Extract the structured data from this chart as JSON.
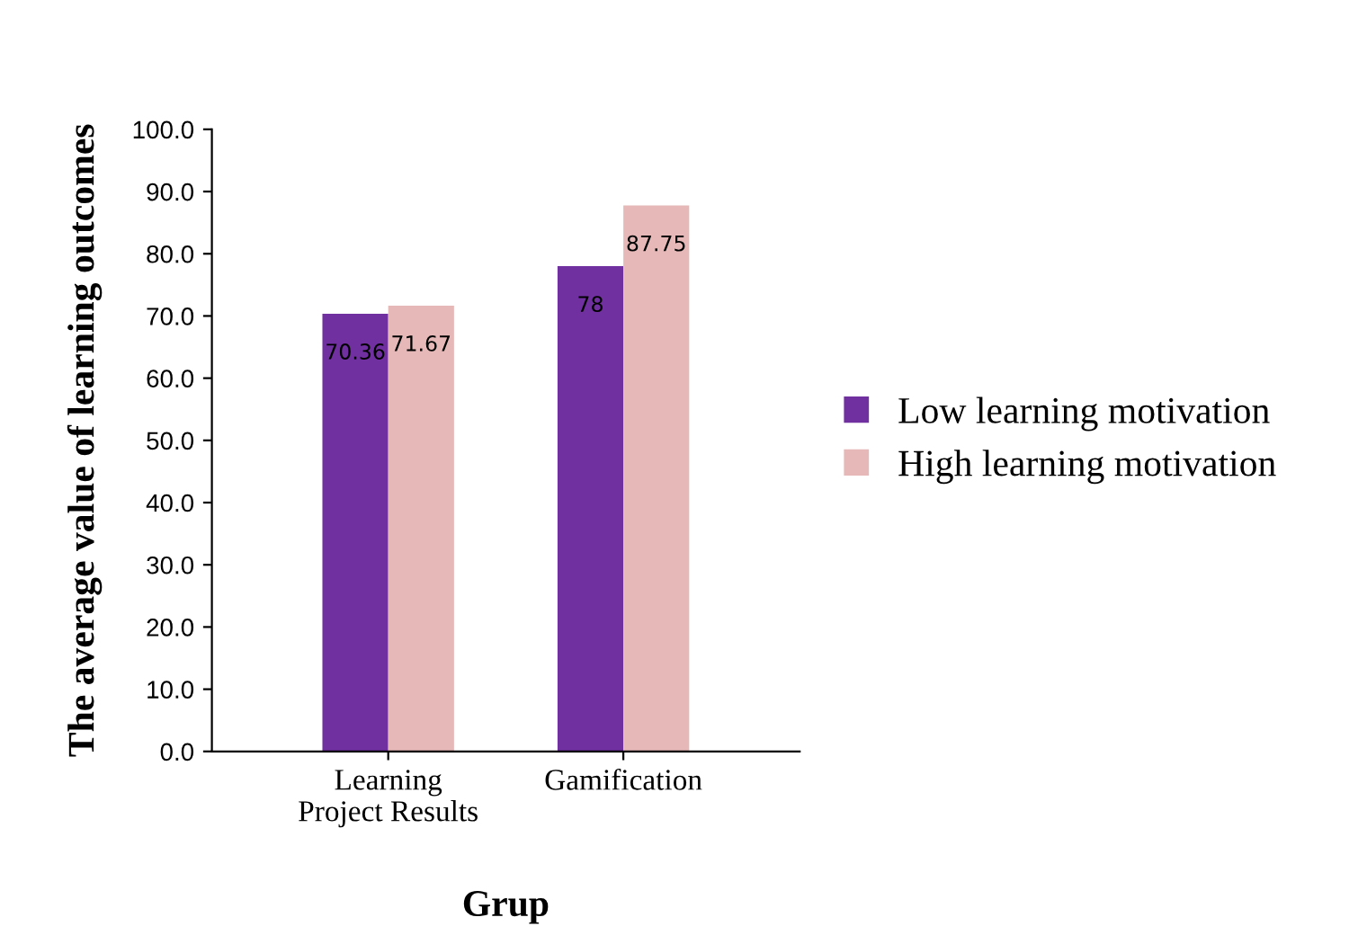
{
  "chart_data": {
    "type": "bar",
    "xlabel": "Grup",
    "ylabel": "The average value of learning outcomes",
    "categories": [
      "Learning\nProject Results",
      "Gamification"
    ],
    "series": [
      {
        "name": "Low learning motivation",
        "color": "#7030a0",
        "values": [
          70.36,
          78
        ]
      },
      {
        "name": "High learning motivation",
        "color": "#e6b9b8",
        "values": [
          71.67,
          87.75
        ]
      }
    ],
    "ylim": [
      0,
      100
    ],
    "yticks": [
      {
        "value": 0,
        "label": "0.0"
      },
      {
        "value": 10,
        "label": "10.0"
      },
      {
        "value": 20,
        "label": "20.0"
      },
      {
        "value": 30,
        "label": "30.0"
      },
      {
        "value": 40,
        "label": "40.0"
      },
      {
        "value": 50,
        "label": "50.0"
      },
      {
        "value": 60,
        "label": "60.0"
      },
      {
        "value": 70,
        "label": "70.0"
      },
      {
        "value": 80,
        "label": "80.0"
      },
      {
        "value": 90,
        "label": "90.0"
      },
      {
        "value": 100,
        "label": "100.0"
      }
    ],
    "grid": false,
    "legend": "right",
    "data_labels": true
  }
}
